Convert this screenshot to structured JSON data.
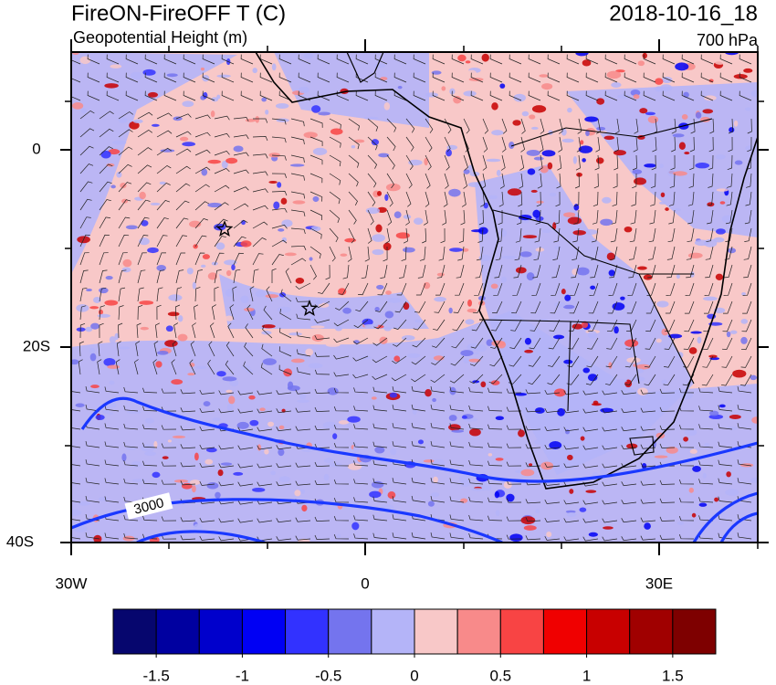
{
  "header": {
    "title": "FireON-FireOFF T (C)",
    "subtitle": "Geopotential Height (m)",
    "time": "2018-10-16_18",
    "level": "700 hPa"
  },
  "map": {
    "y_labels": [
      "0",
      "20S",
      "40S"
    ],
    "x_labels": [
      "30W",
      "0",
      "30E"
    ],
    "contour_label": "3000"
  },
  "colorbar": {
    "colors": [
      "#06066e",
      "#0000a0",
      "#0000cc",
      "#0000f4",
      "#3232ff",
      "#7474ee",
      "#b4b4f8",
      "#f8c8c8",
      "#f88a8a",
      "#f84444",
      "#f00000",
      "#c80000",
      "#a00000",
      "#7e0000"
    ],
    "range": [
      -1.75,
      1.75
    ],
    "ticks": [
      -1.5,
      -1,
      -0.5,
      0,
      0.5,
      1,
      1.5
    ]
  }
}
